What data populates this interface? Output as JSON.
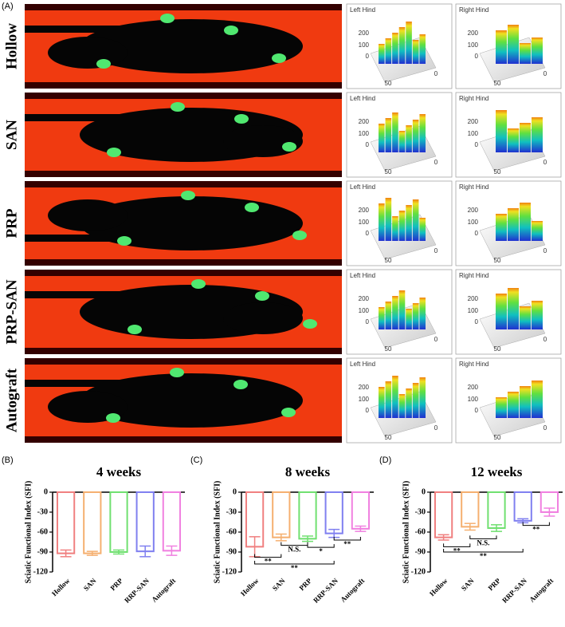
{
  "panel_a": {
    "label": "(A)",
    "rows": [
      {
        "group": "Hollow",
        "left": "Left Hind",
        "right": "Right Hind"
      },
      {
        "group": "SAN",
        "left": "Left Hind",
        "right": "Right Hind"
      },
      {
        "group": "PRP",
        "left": "Left Hind",
        "right": "Right Hind"
      },
      {
        "group": "PRP-SAN",
        "left": "Left Hind",
        "right": "Right Hind"
      },
      {
        "group": "Autograft",
        "left": "Left Hind",
        "right": "Right Hind"
      }
    ],
    "surface_ticks": [
      "200",
      "100",
      "0",
      "50",
      "0"
    ]
  },
  "chart_data": [
    {
      "type": "bar",
      "label": "(B)",
      "title": "4 weeks",
      "ylabel": "Sciatic Functional Index (SFI)",
      "categories": [
        "Hollow",
        "SAN",
        "PRP",
        "RRP-SAN",
        "Autograft"
      ],
      "values": [
        -92,
        -92,
        -90,
        -89,
        -88
      ],
      "errors": [
        5,
        3,
        3,
        8,
        7
      ],
      "colors": [
        "#f08080",
        "#f5b070",
        "#70e070",
        "#8080f0",
        "#f080e0"
      ],
      "ylim": [
        -120,
        0
      ],
      "yticks": [
        0,
        -30,
        -60,
        -90,
        -120
      ],
      "annotations": []
    },
    {
      "type": "bar",
      "label": "(C)",
      "title": "8 weeks",
      "ylabel": "Sciatic Functional Index (SFI)",
      "categories": [
        "Hollow",
        "SAN",
        "PRP",
        "RRP-SAN",
        "Autograft"
      ],
      "values": [
        -82,
        -68,
        -70,
        -62,
        -55
      ],
      "errors": [
        15,
        5,
        4,
        6,
        4
      ],
      "colors": [
        "#f08080",
        "#f5b070",
        "#70e070",
        "#8080f0",
        "#f080e0"
      ],
      "ylim": [
        -120,
        0
      ],
      "yticks": [
        0,
        -30,
        -60,
        -90,
        -120
      ],
      "annotations": [
        "**",
        "**",
        "N.S.",
        "*",
        "**"
      ]
    },
    {
      "type": "bar",
      "label": "(D)",
      "title": "12 weeks",
      "ylabel": "Sciatic Functional Index (SFI)",
      "categories": [
        "Hollow",
        "SAN",
        "PRP",
        "RRP-SAN",
        "Autograft"
      ],
      "values": [
        -68,
        -52,
        -54,
        -43,
        -30
      ],
      "errors": [
        4,
        5,
        5,
        3,
        6
      ],
      "colors": [
        "#f08080",
        "#f5b070",
        "#70e070",
        "#8080f0",
        "#f080e0"
      ],
      "ylim": [
        -120,
        0
      ],
      "yticks": [
        0,
        -30,
        -60,
        -90,
        -120
      ],
      "annotations": [
        "**",
        "N.S.",
        "**",
        "**"
      ]
    }
  ]
}
